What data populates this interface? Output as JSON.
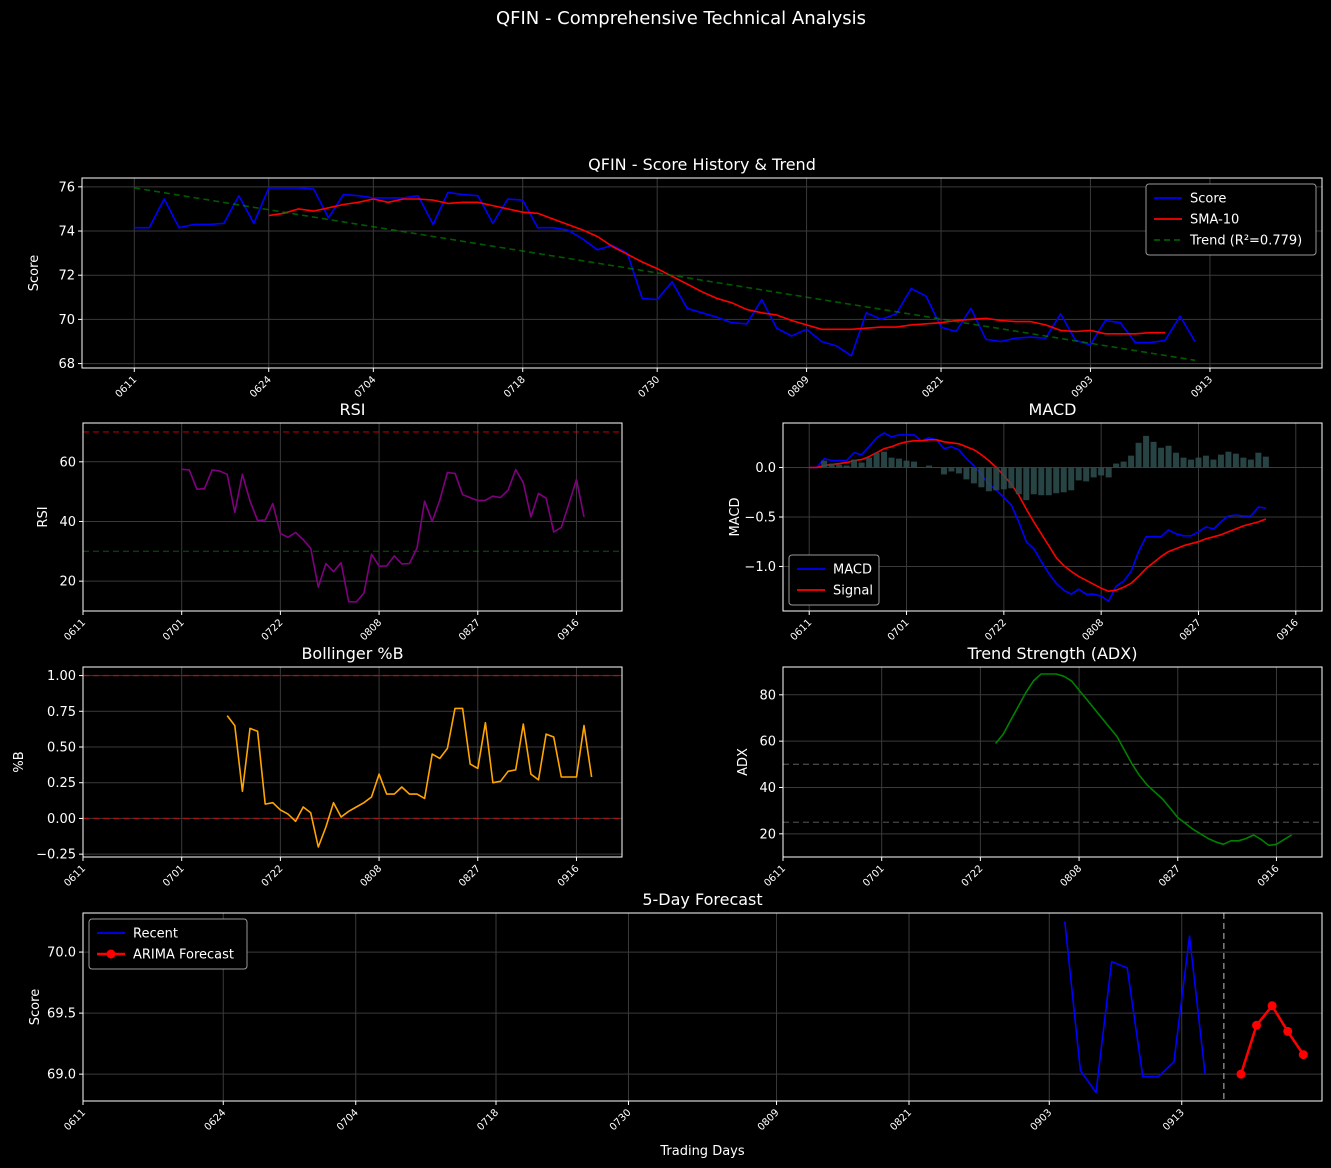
{
  "figure": {
    "suptitle": "QFIN - Comprehensive Technical Analysis"
  },
  "chart_data": [
    {
      "id": "score",
      "type": "line",
      "title": "QFIN - Score History & Trend",
      "ylabel": "Score",
      "xlabel": "",
      "ylim": [
        67.8,
        76.4
      ],
      "xlim": [
        -3.5,
        79.5
      ],
      "yticks": [
        68,
        70,
        72,
        74,
        76
      ],
      "xticks": [
        {
          "i": 0,
          "label": "0611"
        },
        {
          "i": 9,
          "label": "0624"
        },
        {
          "i": 16,
          "label": "0704"
        },
        {
          "i": 26,
          "label": "0718"
        },
        {
          "i": 35,
          "label": "0730"
        },
        {
          "i": 45,
          "label": "0809"
        },
        {
          "i": 54,
          "label": "0821"
        },
        {
          "i": 64,
          "label": "0903"
        },
        {
          "i": 72,
          "label": "0913"
        }
      ],
      "grid": true,
      "legend": "upper-right",
      "series": [
        {
          "name": "Score",
          "color": "#0000ff",
          "style": "solid",
          "x_start": 0,
          "values": [
            74.15,
            74.15,
            75.45,
            74.15,
            74.3,
            74.3,
            74.35,
            75.6,
            74.35,
            75.95,
            75.95,
            75.95,
            75.9,
            74.6,
            75.65,
            75.6,
            75.5,
            75.5,
            75.5,
            75.6,
            74.3,
            75.75,
            75.65,
            75.6,
            74.35,
            75.45,
            75.4,
            74.15,
            74.15,
            74.05,
            73.65,
            73.15,
            73.35,
            73.0,
            70.95,
            70.9,
            71.7,
            70.5,
            70.3,
            70.1,
            69.85,
            69.8,
            70.9,
            69.6,
            69.25,
            69.55,
            69.0,
            68.8,
            68.35,
            70.3,
            70.0,
            70.25,
            71.4,
            71.05,
            69.65,
            69.45,
            70.5,
            69.1,
            69.0,
            69.15,
            69.2,
            69.15,
            70.25,
            69.05,
            68.85,
            69.95,
            69.85,
            68.95,
            68.95,
            69.05,
            70.15,
            69.0
          ]
        },
        {
          "name": "SMA-10",
          "color": "#ff0000",
          "style": "solid",
          "x_start": 9,
          "values": [
            74.7,
            74.8,
            75.0,
            74.9,
            75.05,
            75.2,
            75.3,
            75.45,
            75.3,
            75.45,
            75.45,
            75.4,
            75.25,
            75.3,
            75.3,
            75.15,
            75.0,
            74.85,
            74.8,
            74.55,
            74.3,
            74.05,
            73.75,
            73.3,
            72.95,
            72.6,
            72.3,
            71.95,
            71.6,
            71.25,
            70.95,
            70.75,
            70.45,
            70.3,
            70.2,
            69.95,
            69.75,
            69.55,
            69.55,
            69.55,
            69.6,
            69.65,
            69.65,
            69.75,
            69.8,
            69.85,
            69.95,
            70.0,
            70.05,
            69.95,
            69.9,
            69.9,
            69.75,
            69.5,
            69.45,
            69.5,
            69.35,
            69.35,
            69.35,
            69.4,
            69.4
          ]
        },
        {
          "name": "Trend (R²=0.779)",
          "color": "#008000",
          "style": "dashed",
          "x_start": 0,
          "values_at": {
            "0": 75.95,
            "71": 68.15
          }
        }
      ]
    },
    {
      "id": "rsi",
      "type": "line",
      "title": "RSI",
      "ylabel": "RSI",
      "xlabel": "",
      "ylim": [
        10,
        73
      ],
      "xlim": [
        0,
        71
      ],
      "yticks": [
        20,
        40,
        60
      ],
      "xticks": [
        {
          "i": 0,
          "label": "0611"
        },
        {
          "i": 13,
          "label": "0701"
        },
        {
          "i": 26,
          "label": "0722"
        },
        {
          "i": 39,
          "label": "0808"
        },
        {
          "i": 52,
          "label": "0827"
        },
        {
          "i": 65,
          "label": "0916"
        }
      ],
      "grid": true,
      "hlines": [
        {
          "y": 70,
          "color": "#ff0000"
        },
        {
          "y": 30,
          "color": "#008000"
        }
      ],
      "series": [
        {
          "name": "RSI",
          "color": "#800080",
          "style": "solid",
          "x_start": 13,
          "values": [
            57.5,
            57.3,
            50.8,
            51.0,
            57.3,
            56.9,
            55.8,
            43.0,
            55.8,
            46.9,
            40.3,
            40.5,
            46.0,
            36.0,
            34.7,
            36.3,
            33.9,
            31.0,
            18.0,
            25.9,
            23.2,
            26.2,
            13.1,
            13.0,
            16.0,
            29.0,
            25.0,
            25.1,
            28.5,
            25.8,
            25.9,
            31.1,
            46.8,
            40.0,
            47.2,
            56.4,
            56.1,
            49.0,
            48.0,
            47.0,
            47.1,
            48.5,
            48.0,
            50.5,
            57.4,
            53.0,
            41.5,
            49.4,
            47.8,
            36.5,
            38.0,
            45.9,
            54.1,
            41.5
          ]
        }
      ]
    },
    {
      "id": "macd",
      "type": "line",
      "title": "MACD",
      "ylabel": "MACD",
      "xlabel": "",
      "ylim": [
        -1.45,
        0.45
      ],
      "xlim": [
        -3.5,
        68.5
      ],
      "yticks": [
        0.0,
        -0.5,
        -1.0
      ],
      "ytick_labels": [
        "0.0",
        "−0.5",
        "−1.0"
      ],
      "xticks": [
        {
          "i": 0,
          "label": "0611"
        },
        {
          "i": 13,
          "label": "0701"
        },
        {
          "i": 26,
          "label": "0722"
        },
        {
          "i": 39,
          "label": "0808"
        },
        {
          "i": 52,
          "label": "0827"
        },
        {
          "i": 65,
          "label": "0916"
        }
      ],
      "grid": true,
      "legend": "lower-left",
      "series": [
        {
          "name": "MACD",
          "color": "#0000ff",
          "style": "solid",
          "x_start": 0,
          "values": [
            0.0,
            0.0,
            0.09,
            0.07,
            0.07,
            0.07,
            0.15,
            0.13,
            0.21,
            0.3,
            0.35,
            0.31,
            0.33,
            0.33,
            0.33,
            0.27,
            0.3,
            0.28,
            0.19,
            0.21,
            0.18,
            0.09,
            0.02,
            -0.07,
            -0.17,
            -0.23,
            -0.3,
            -0.38,
            -0.55,
            -0.75,
            -0.82,
            -0.95,
            -1.07,
            -1.17,
            -1.24,
            -1.28,
            -1.23,
            -1.28,
            -1.28,
            -1.3,
            -1.35,
            -1.2,
            -1.15,
            -1.05,
            -0.85,
            -0.7,
            -0.7,
            -0.7,
            -0.63,
            -0.67,
            -0.69,
            -0.69,
            -0.65,
            -0.6,
            -0.62,
            -0.55,
            -0.49,
            -0.48,
            -0.49,
            -0.49,
            -0.4,
            -0.41
          ]
        },
        {
          "name": "Signal",
          "color": "#ff0000",
          "style": "solid",
          "x_start": 0,
          "values": [
            0.0,
            0.0,
            0.02,
            0.03,
            0.04,
            0.05,
            0.07,
            0.08,
            0.11,
            0.15,
            0.19,
            0.21,
            0.24,
            0.26,
            0.27,
            0.27,
            0.28,
            0.28,
            0.26,
            0.25,
            0.24,
            0.21,
            0.18,
            0.13,
            0.07,
            0.0,
            -0.08,
            -0.17,
            -0.28,
            -0.42,
            -0.55,
            -0.67,
            -0.79,
            -0.91,
            -0.99,
            -1.05,
            -1.1,
            -1.14,
            -1.18,
            -1.22,
            -1.25,
            -1.24,
            -1.21,
            -1.17,
            -1.1,
            -1.02,
            -0.96,
            -0.9,
            -0.85,
            -0.82,
            -0.79,
            -0.77,
            -0.75,
            -0.72,
            -0.7,
            -0.68,
            -0.65,
            -0.62,
            -0.59,
            -0.57,
            -0.55,
            -0.52
          ]
        },
        {
          "name": "Histogram",
          "color": "#2f4f4f",
          "style": "bar",
          "x_start": 0,
          "values": [
            0.0,
            0.0,
            0.07,
            0.04,
            0.03,
            0.02,
            0.08,
            0.05,
            0.1,
            0.15,
            0.16,
            0.1,
            0.09,
            0.07,
            0.06,
            0.0,
            0.02,
            0.0,
            -0.07,
            -0.04,
            -0.06,
            -0.12,
            -0.16,
            -0.2,
            -0.24,
            -0.23,
            -0.22,
            -0.21,
            -0.27,
            -0.33,
            -0.27,
            -0.28,
            -0.28,
            -0.26,
            -0.25,
            -0.23,
            -0.13,
            -0.14,
            -0.1,
            -0.08,
            -0.1,
            0.04,
            0.06,
            0.12,
            0.25,
            0.32,
            0.26,
            0.2,
            0.22,
            0.15,
            0.1,
            0.08,
            0.1,
            0.12,
            0.08,
            0.13,
            0.16,
            0.14,
            0.1,
            0.08,
            0.15,
            0.11
          ]
        }
      ]
    },
    {
      "id": "bollinger",
      "type": "line",
      "title": "Bollinger %B",
      "ylabel": "%B",
      "xlabel": "",
      "ylim": [
        -0.27,
        1.06
      ],
      "xlim": [
        0,
        71
      ],
      "yticks": [
        1.0,
        0.75,
        0.5,
        0.25,
        0.0,
        -0.25
      ],
      "ytick_labels": [
        "1.00",
        "0.75",
        "0.50",
        "0.25",
        "0.00",
        "−0.25"
      ],
      "xticks": [
        {
          "i": 0,
          "label": "0611"
        },
        {
          "i": 13,
          "label": "0701"
        },
        {
          "i": 26,
          "label": "0722"
        },
        {
          "i": 39,
          "label": "0808"
        },
        {
          "i": 52,
          "label": "0827"
        },
        {
          "i": 65,
          "label": "0916"
        }
      ],
      "grid": true,
      "hlines": [
        {
          "y": 1.0,
          "color": "#ff0000"
        },
        {
          "y": 0.0,
          "color": "#ff0000"
        }
      ],
      "series": [
        {
          "name": "%B",
          "color": "#ffa500",
          "style": "solid",
          "x_start": 19,
          "values": [
            0.72,
            0.65,
            0.19,
            0.63,
            0.61,
            0.1,
            0.11,
            0.06,
            0.03,
            -0.02,
            0.08,
            0.04,
            -0.2,
            -0.06,
            0.11,
            0.01,
            0.05,
            0.08,
            0.11,
            0.15,
            0.31,
            0.17,
            0.17,
            0.22,
            0.17,
            0.17,
            0.14,
            0.45,
            0.42,
            0.49,
            0.77,
            0.77,
            0.38,
            0.35,
            0.67,
            0.25,
            0.26,
            0.33,
            0.34,
            0.66,
            0.31,
            0.27,
            0.59,
            0.57,
            0.29,
            0.29,
            0.29,
            0.65,
            0.29
          ]
        }
      ]
    },
    {
      "id": "adx",
      "type": "line",
      "title": "Trend Strength (ADX)",
      "ylabel": "ADX",
      "xlabel": "",
      "ylim": [
        10,
        92
      ],
      "xlim": [
        0,
        71
      ],
      "yticks": [
        20,
        40,
        60,
        80
      ],
      "xticks": [
        {
          "i": 0,
          "label": "0611"
        },
        {
          "i": 13,
          "label": "0701"
        },
        {
          "i": 26,
          "label": "0722"
        },
        {
          "i": 39,
          "label": "0808"
        },
        {
          "i": 52,
          "label": "0827"
        },
        {
          "i": 65,
          "label": "0916"
        }
      ],
      "grid": true,
      "hlines": [
        {
          "y": 50,
          "color": "#808080"
        },
        {
          "y": 25,
          "color": "#808080"
        }
      ],
      "series": [
        {
          "name": "ADX",
          "color": "#008000",
          "style": "solid",
          "x_start": 28,
          "values": [
            59.0,
            63.0,
            69.0,
            75.0,
            81.0,
            86.0,
            89.0,
            89.0,
            89.0,
            88.0,
            86.0,
            82.0,
            78.0,
            74.0,
            70.0,
            66.0,
            62.0,
            56.0,
            50.0,
            45.0,
            41.0,
            38.0,
            35.0,
            31.0,
            27.0,
            24.5,
            22.0,
            20.0,
            18.0,
            16.5,
            15.5,
            17.0,
            17.0,
            18.0,
            19.5,
            17.5,
            15.0,
            15.5,
            17.5,
            19.5
          ]
        }
      ]
    },
    {
      "id": "forecast",
      "type": "line",
      "title": "5-Day Forecast",
      "ylabel": "Score",
      "xlabel": "Trading Days",
      "ylim": [
        68.78,
        70.32
      ],
      "xlim": [
        0,
        79.5
      ],
      "yticks": [
        69.0,
        69.5,
        70.0
      ],
      "ytick_labels": [
        "69.0",
        "69.5",
        "70.0"
      ],
      "xticks": [
        {
          "i": 0,
          "label": "0611"
        },
        {
          "i": 9,
          "label": "0624"
        },
        {
          "i": 17.5,
          "label": "0704"
        },
        {
          "i": 26.5,
          "label": "0718"
        },
        {
          "i": 35,
          "label": "0730"
        },
        {
          "i": 44.5,
          "label": "0809"
        },
        {
          "i": 53,
          "label": "0821"
        },
        {
          "i": 62,
          "label": "0903"
        },
        {
          "i": 70.5,
          "label": "0913"
        }
      ],
      "grid": true,
      "legend": "upper-left",
      "vline": 73.2,
      "series": [
        {
          "name": "Recent",
          "color": "#0000ff",
          "style": "solid",
          "x_start": 63,
          "values": [
            70.25,
            69.03,
            68.85,
            69.92,
            69.87,
            68.98,
            68.98,
            69.1,
            70.13,
            69.0
          ]
        },
        {
          "name": "ARIMA Forecast",
          "color": "#ff0000",
          "style": "marker-line",
          "x_start": 74.3,
          "values": [
            69.0,
            69.4,
            69.56,
            69.35,
            69.16
          ]
        }
      ]
    }
  ]
}
